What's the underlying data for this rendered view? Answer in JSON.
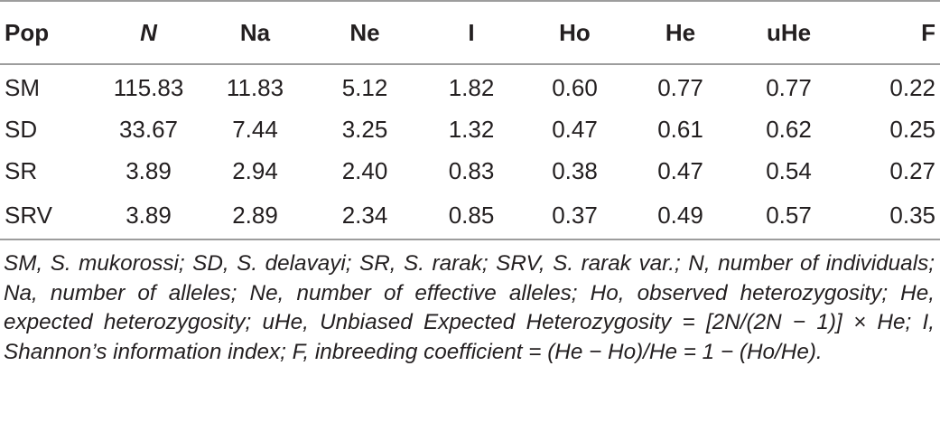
{
  "table": {
    "headers": [
      "Pop",
      "N",
      "Na",
      "Ne",
      "I",
      "Ho",
      "He",
      "uHe",
      "F"
    ],
    "rows": [
      [
        "SM",
        "115.83",
        "11.83",
        "5.12",
        "1.82",
        "0.60",
        "0.77",
        "0.77",
        "0.22"
      ],
      [
        "SD",
        "33.67",
        "7.44",
        "3.25",
        "1.32",
        "0.47",
        "0.61",
        "0.62",
        "0.25"
      ],
      [
        "SR",
        "3.89",
        "2.94",
        "2.40",
        "0.83",
        "0.38",
        "0.47",
        "0.54",
        "0.27"
      ],
      [
        "SRV",
        "3.89",
        "2.89",
        "2.34",
        "0.85",
        "0.37",
        "0.49",
        "0.57",
        "0.35"
      ]
    ]
  },
  "footnote": "SM, S. mukorossi; SD, S. delavayi; SR, S. rarak; SRV, S. rarak var.; N, number of individuals; Na, number of alleles; Ne, number of effective alleles; Ho, observed heterozygosity; He, expected heterozygosity; uHe, Unbiased Expected Heterozygosity = [2N/(2N − 1)] × He; I, Shannon’s information index; F, inbreeding coefficient = (He − Ho)/He = 1 − (Ho/He)."
}
